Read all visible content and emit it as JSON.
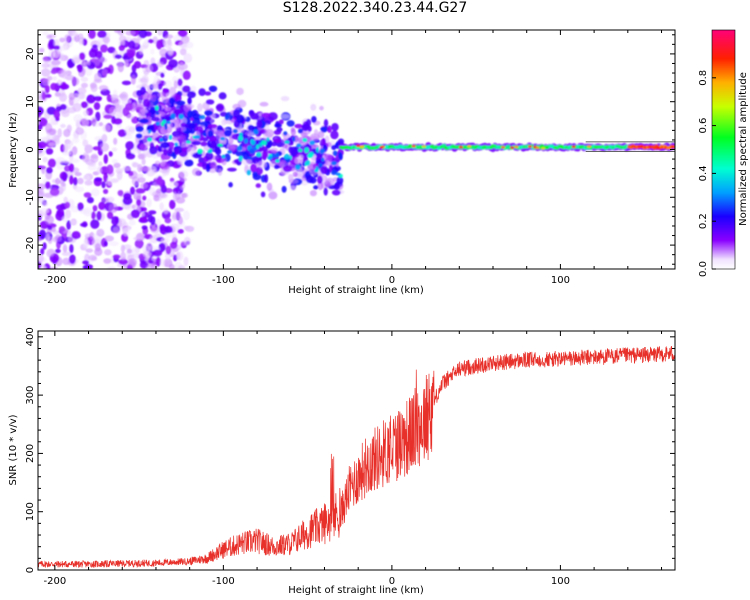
{
  "title": "S128.2022.340.23.44.G27",
  "colors": {
    "snr_line": "#e8302a",
    "axis": "#000000"
  },
  "chart_data": [
    {
      "type": "heatmap",
      "name": "spectrogram",
      "xlabel": "Height of straight line (km)",
      "ylabel": "Frequency (Hz)",
      "xlim": [
        -210,
        168
      ],
      "ylim": [
        -25,
        25
      ],
      "xticks": [
        -200,
        -100,
        0,
        100
      ],
      "yticks": [
        -20,
        -10,
        0,
        10,
        20
      ],
      "colorbar": {
        "label": "Normalized spectral amplitude",
        "range": [
          0,
          1
        ],
        "ticks": [
          "0.0",
          "0.2",
          "0.4",
          "0.6",
          "0.8"
        ],
        "colormap": "rainbow",
        "low_color": "#ffffff"
      },
      "regions": [
        {
          "x": [
            -210,
            -125
          ],
          "freq_spread": 25,
          "amplitude": 0.15,
          "note_desc": "broad scattered noise"
        },
        {
          "x": [
            -150,
            -30
          ],
          "freq_center_at_start": 6,
          "freq_center_at_end": -2,
          "freq_spread": 8,
          "amplitude": 0.35
        },
        {
          "x": [
            -30,
            160
          ],
          "freq": 0.5,
          "amplitude": 0.5
        },
        {
          "x": [
            140,
            168
          ],
          "freq": 0.5,
          "amplitude": 0.9
        }
      ]
    },
    {
      "type": "line",
      "name": "snr",
      "xlabel": "Height of straight line (km)",
      "ylabel": "SNR (10 * v/v)",
      "xlim": [
        -210,
        168
      ],
      "ylim": [
        0,
        410
      ],
      "xticks": [
        -200,
        -100,
        0,
        100
      ],
      "yticks": [
        0,
        100,
        200,
        300,
        400
      ],
      "series": [
        {
          "color": "#e8302a",
          "x": [
            -210,
            -200,
            -180,
            -160,
            -140,
            -120,
            -110,
            -100,
            -90,
            -80,
            -70,
            -60,
            -50,
            -40,
            -30,
            -25,
            -20,
            -15,
            -10,
            -5,
            0,
            5,
            10,
            15,
            20,
            25,
            30,
            40,
            50,
            60,
            80,
            100,
            120,
            140,
            160,
            168
          ],
          "values": [
            10,
            10,
            10,
            11,
            12,
            15,
            20,
            35,
            45,
            50,
            40,
            45,
            65,
            80,
            100,
            140,
            160,
            180,
            190,
            200,
            210,
            220,
            230,
            245,
            260,
            290,
            320,
            345,
            350,
            355,
            360,
            362,
            365,
            368,
            370,
            372
          ]
        }
      ]
    }
  ]
}
